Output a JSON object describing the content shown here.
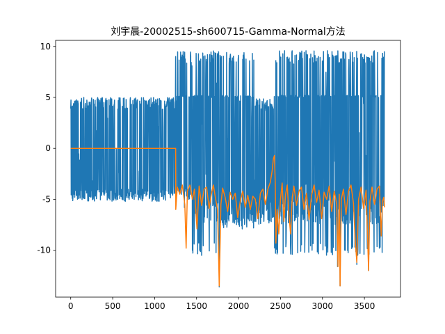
{
  "chart_data": {
    "type": "line",
    "title": "刘宇晨-20002515-sh600715-Gamma-Normal方法",
    "xlabel": "",
    "ylabel": "",
    "xlim": [
      -180,
      3930
    ],
    "ylim": [
      -14.6,
      10.6
    ],
    "xticks": [
      0,
      500,
      1000,
      1500,
      2000,
      2500,
      3000,
      3500
    ],
    "yticks": [
      -10,
      -5,
      0,
      5,
      10
    ],
    "grid": false,
    "legend": "none",
    "series": [
      {
        "color": "#1f77b4",
        "description_points": [
          {
            "x_from": 0,
            "x_to": 1250,
            "high": 5.0,
            "low": -5.2
          },
          {
            "x_from": 1250,
            "x_to": 1450,
            "high": 9.5,
            "low": -5.0
          },
          {
            "x_from": 1450,
            "x_to": 1750,
            "high": 9.6,
            "low": -10.4
          },
          {
            "x_from": 1750,
            "x_to": 2200,
            "high": 9.5,
            "low": -8.0
          },
          {
            "x_from": 2200,
            "x_to": 2420,
            "high": 4.9,
            "low": -7.0
          },
          {
            "x_from": 2420,
            "x_to": 3000,
            "high": 9.6,
            "low": -10.4
          },
          {
            "x_from": 3000,
            "x_to": 3740,
            "high": 9.6,
            "low": -10.5
          }
        ],
        "spikes": [
          {
            "x": 1340,
            "y": 9.5
          },
          {
            "x": 1355,
            "y": -5.8
          },
          {
            "x": 1560,
            "y": -10.5
          },
          {
            "x": 1770,
            "y": -13.6
          },
          {
            "x": 2440,
            "y": -10.3
          },
          {
            "x": 2640,
            "y": -10.4
          },
          {
            "x": 3180,
            "y": -11.6
          },
          {
            "x": 3210,
            "y": -13.5
          },
          {
            "x": 3410,
            "y": -11.4
          },
          {
            "x": 3550,
            "y": -12.0
          }
        ]
      },
      {
        "color": "#ff7f0e",
        "points": [
          [
            0,
            0
          ],
          [
            1250,
            0
          ],
          [
            1252,
            -6.0
          ],
          [
            1270,
            -3.8
          ],
          [
            1300,
            -4.5
          ],
          [
            1330,
            -3.6
          ],
          [
            1360,
            -5.5
          ],
          [
            1375,
            -9.8
          ],
          [
            1390,
            -4.2
          ],
          [
            1420,
            -3.6
          ],
          [
            1450,
            -5.0
          ],
          [
            1475,
            -4.0
          ],
          [
            1505,
            -7.9
          ],
          [
            1530,
            -3.7
          ],
          [
            1560,
            -5.6
          ],
          [
            1590,
            -4.0
          ],
          [
            1620,
            -3.8
          ],
          [
            1650,
            -5.9
          ],
          [
            1675,
            -4.5
          ],
          [
            1700,
            -3.6
          ],
          [
            1725,
            -4.9
          ],
          [
            1750,
            -6.0
          ],
          [
            1770,
            -13.5
          ],
          [
            1790,
            -5.5
          ],
          [
            1810,
            -3.9
          ],
          [
            1840,
            -4.8
          ],
          [
            1870,
            -6.2
          ],
          [
            1900,
            -4.3
          ],
          [
            1930,
            -5.0
          ],
          [
            1960,
            -4.4
          ],
          [
            1990,
            -6.8
          ],
          [
            2020,
            -5.2
          ],
          [
            2050,
            -4.2
          ],
          [
            2080,
            -5.8
          ],
          [
            2110,
            -4.6
          ],
          [
            2140,
            -6.0
          ],
          [
            2170,
            -4.7
          ],
          [
            2200,
            -5.0
          ],
          [
            2230,
            -6.9
          ],
          [
            2260,
            -4.4
          ],
          [
            2290,
            -4.0
          ],
          [
            2320,
            -5.5
          ],
          [
            2350,
            -4.0
          ],
          [
            2380,
            -3.3
          ],
          [
            2400,
            -2.2
          ],
          [
            2415,
            -1.0
          ],
          [
            2428,
            -0.7
          ],
          [
            2438,
            -3.5
          ],
          [
            2445,
            -9.3
          ],
          [
            2460,
            -6.0
          ],
          [
            2480,
            -8.4
          ],
          [
            2500,
            -5.0
          ],
          [
            2520,
            -3.4
          ],
          [
            2540,
            -7.2
          ],
          [
            2560,
            -4.5
          ],
          [
            2580,
            -3.6
          ],
          [
            2600,
            -6.5
          ],
          [
            2620,
            -8.4
          ],
          [
            2640,
            -4.8
          ],
          [
            2660,
            -3.7
          ],
          [
            2690,
            -5.6
          ],
          [
            2720,
            -4.2
          ],
          [
            2750,
            -3.8
          ],
          [
            2780,
            -6.0
          ],
          [
            2810,
            -4.4
          ],
          [
            2840,
            -7.0
          ],
          [
            2870,
            -4.6
          ],
          [
            2900,
            -3.6
          ],
          [
            2930,
            -5.3
          ],
          [
            2960,
            -4.1
          ],
          [
            2990,
            -6.9
          ],
          [
            3020,
            -4.3
          ],
          [
            3050,
            -5.0
          ],
          [
            3080,
            -3.7
          ],
          [
            3110,
            -6.2
          ],
          [
            3140,
            -4.2
          ],
          [
            3170,
            -5.5
          ],
          [
            3185,
            -11.6
          ],
          [
            3200,
            -4.5
          ],
          [
            3210,
            -13.5
          ],
          [
            3225,
            -5.0
          ],
          [
            3250,
            -4.0
          ],
          [
            3280,
            -6.5
          ],
          [
            3310,
            -4.2
          ],
          [
            3340,
            -3.6
          ],
          [
            3370,
            -5.4
          ],
          [
            3390,
            -9.0
          ],
          [
            3410,
            -11.2
          ],
          [
            3430,
            -5.0
          ],
          [
            3460,
            -3.8
          ],
          [
            3490,
            -5.9
          ],
          [
            3520,
            -4.1
          ],
          [
            3550,
            -12.0
          ],
          [
            3565,
            -5.2
          ],
          [
            3590,
            -3.8
          ],
          [
            3620,
            -5.5
          ],
          [
            3650,
            -4.0
          ],
          [
            3680,
            -3.7
          ],
          [
            3700,
            -8.6
          ],
          [
            3715,
            -5.2
          ],
          [
            3730,
            -4.8
          ],
          [
            3740,
            -5.8
          ]
        ]
      }
    ]
  }
}
